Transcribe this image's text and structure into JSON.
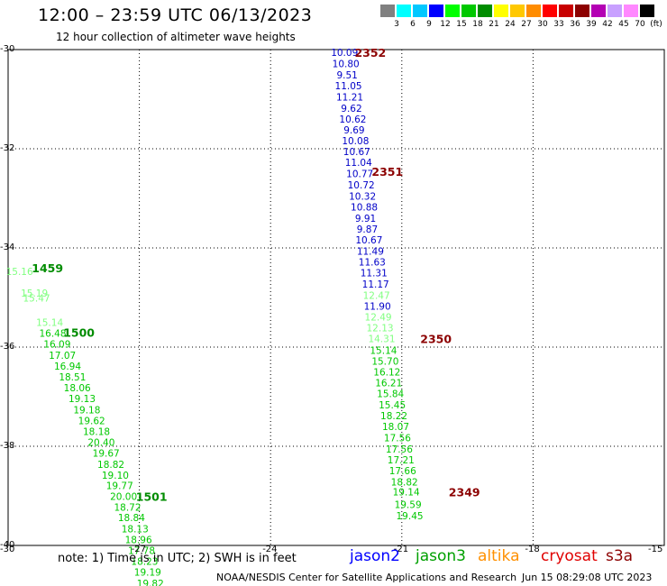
{
  "header": {
    "title": "12:00 – 23:59 UTC 06/13/2023",
    "subtitle": "12 hour collection of altimeter wave heights"
  },
  "legend": {
    "colors": [
      "#808080",
      "#00ffff",
      "#00c8ff",
      "#0000ff",
      "#00ff00",
      "#00c800",
      "#008c00",
      "#ffff00",
      "#ffc800",
      "#ff8c00",
      "#ff0000",
      "#c80000",
      "#8c0000",
      "#b400b4",
      "#c8a0ff",
      "#ff88ff",
      "#000000"
    ],
    "labels": [
      "3",
      "6",
      "9",
      "12",
      "15",
      "18",
      "21",
      "24",
      "27",
      "30",
      "33",
      "36",
      "39",
      "42",
      "45",
      "70",
      "(ft)"
    ]
  },
  "axes": {
    "lat_labels": [
      "-30",
      "-32",
      "-34",
      "-36",
      "-38",
      "-40"
    ],
    "lon_labels": [
      "-30",
      "-27",
      "-24",
      "-21",
      "-18",
      "-15"
    ]
  },
  "tracks": [
    {
      "name": "jason2",
      "color": "#0000c8",
      "points": [
        {
          "lon": -22.31,
          "lat": -30.05,
          "v": "10.09"
        },
        {
          "lon": -22.28,
          "lat": -30.28,
          "v": "10.80"
        },
        {
          "lon": -22.25,
          "lat": -30.51,
          "v": "9.51"
        },
        {
          "lon": -22.22,
          "lat": -30.73,
          "v": "11.05"
        },
        {
          "lon": -22.19,
          "lat": -30.95,
          "v": "11.21"
        },
        {
          "lon": -22.15,
          "lat": -31.18,
          "v": "9.62"
        },
        {
          "lon": -22.12,
          "lat": -31.4,
          "v": "10.62"
        },
        {
          "lon": -22.09,
          "lat": -31.62,
          "v": "9.69"
        },
        {
          "lon": -22.06,
          "lat": -31.84,
          "v": "10.08"
        },
        {
          "lon": -22.03,
          "lat": -32.05,
          "v": "10.67"
        },
        {
          "lon": -21.99,
          "lat": -32.27,
          "v": "11.04"
        },
        {
          "lon": -21.96,
          "lat": -32.5,
          "v": "10.77"
        },
        {
          "lon": -21.93,
          "lat": -32.73,
          "v": "10.72"
        },
        {
          "lon": -21.9,
          "lat": -32.95,
          "v": "10.32"
        },
        {
          "lon": -21.86,
          "lat": -33.17,
          "v": "10.88"
        },
        {
          "lon": -21.83,
          "lat": -33.4,
          "v": "9.91"
        },
        {
          "lon": -21.79,
          "lat": -33.62,
          "v": "9.87"
        },
        {
          "lon": -21.75,
          "lat": -33.84,
          "v": "10.67"
        },
        {
          "lon": -21.72,
          "lat": -34.06,
          "v": "11.49"
        },
        {
          "lon": -21.68,
          "lat": -34.28,
          "v": "11.63"
        },
        {
          "lon": -21.64,
          "lat": -34.5,
          "v": "11.31"
        },
        {
          "lon": -21.6,
          "lat": -34.73,
          "v": "11.17"
        },
        {
          "lon": -21.56,
          "lat": -35.17,
          "v": "11.90"
        }
      ]
    },
    {
      "name": "jason3",
      "color": "#00c800",
      "points": [
        {
          "lon": -21.58,
          "lat": -34.95,
          "v": "12.47",
          "c": "#80ff80"
        },
        {
          "lon": -21.54,
          "lat": -35.39,
          "v": "12.49",
          "c": "#80ff80"
        },
        {
          "lon": -21.5,
          "lat": -35.61,
          "v": "12.13",
          "c": "#80ff80"
        },
        {
          "lon": -21.46,
          "lat": -35.83,
          "v": "14.31",
          "c": "#80ff80"
        },
        {
          "lon": -21.42,
          "lat": -36.06,
          "v": "15.14"
        },
        {
          "lon": -21.38,
          "lat": -36.28,
          "v": "15.70"
        },
        {
          "lon": -21.34,
          "lat": -36.5,
          "v": "16.12"
        },
        {
          "lon": -21.3,
          "lat": -36.72,
          "v": "16.21"
        },
        {
          "lon": -21.26,
          "lat": -36.94,
          "v": "15.84"
        },
        {
          "lon": -21.22,
          "lat": -37.16,
          "v": "15.45"
        },
        {
          "lon": -21.18,
          "lat": -37.38,
          "v": "18.22"
        },
        {
          "lon": -21.14,
          "lat": -37.6,
          "v": "18.07"
        },
        {
          "lon": -21.1,
          "lat": -37.83,
          "v": "17.56"
        },
        {
          "lon": -21.06,
          "lat": -38.05,
          "v": "17.56"
        },
        {
          "lon": -21.02,
          "lat": -38.27,
          "v": "17.21"
        },
        {
          "lon": -20.98,
          "lat": -38.49,
          "v": "17.66"
        },
        {
          "lon": -20.94,
          "lat": -38.72,
          "v": "18.82"
        },
        {
          "lon": -20.9,
          "lat": -38.92,
          "v": "19.14"
        },
        {
          "lon": -20.86,
          "lat": -39.17,
          "v": "19.59"
        },
        {
          "lon": -20.82,
          "lat": -39.4,
          "v": "19.45"
        },
        {
          "lon": -29.74,
          "lat": -34.47,
          "v": "15.16",
          "c": "#80ff80"
        },
        {
          "lon": -29.4,
          "lat": -34.91,
          "v": "15.19",
          "c": "#80ff80"
        },
        {
          "lon": -29.35,
          "lat": -35.01,
          "v": "15.47",
          "c": "#80ff80"
        },
        {
          "lon": -29.05,
          "lat": -35.5,
          "v": "15.14",
          "c": "#80ff80"
        },
        {
          "lon": -28.98,
          "lat": -35.72,
          "v": "16.48"
        },
        {
          "lon": -28.88,
          "lat": -35.94,
          "v": "16.09"
        },
        {
          "lon": -28.76,
          "lat": -36.16,
          "v": "17.07"
        },
        {
          "lon": -28.64,
          "lat": -36.38,
          "v": "16.94"
        },
        {
          "lon": -28.53,
          "lat": -36.6,
          "v": "18.51"
        },
        {
          "lon": -28.42,
          "lat": -36.82,
          "v": "18.06"
        },
        {
          "lon": -28.31,
          "lat": -37.04,
          "v": "19.13"
        },
        {
          "lon": -28.2,
          "lat": -37.26,
          "v": "19.18"
        },
        {
          "lon": -28.09,
          "lat": -37.48,
          "v": "19.62"
        },
        {
          "lon": -27.98,
          "lat": -37.7,
          "v": "18.18"
        },
        {
          "lon": -27.87,
          "lat": -37.92,
          "v": "20.40"
        },
        {
          "lon": -27.76,
          "lat": -38.14,
          "v": "19.67"
        },
        {
          "lon": -27.65,
          "lat": -38.36,
          "v": "18.82"
        },
        {
          "lon": -27.55,
          "lat": -38.58,
          "v": "19.10"
        },
        {
          "lon": -27.45,
          "lat": -38.79,
          "v": "19.77"
        },
        {
          "lon": -27.36,
          "lat": -39.01,
          "v": "20.00"
        },
        {
          "lon": -27.27,
          "lat": -39.23,
          "v": "18.72"
        },
        {
          "lon": -27.18,
          "lat": -39.44,
          "v": "18.84"
        },
        {
          "lon": -27.1,
          "lat": -39.66,
          "v": "18.13"
        },
        {
          "lon": -27.02,
          "lat": -39.88,
          "v": "18.96"
        },
        {
          "lon": -26.95,
          "lat": -40.1,
          "v": "17.78"
        },
        {
          "lon": -26.88,
          "lat": -40.32,
          "v": "18.23"
        },
        {
          "lon": -26.81,
          "lat": -40.54,
          "v": "19.19"
        },
        {
          "lon": -26.75,
          "lat": -40.76,
          "v": "19.82"
        }
      ]
    }
  ],
  "time_labels": [
    {
      "lon": -21.72,
      "lat": -30.05,
      "t": "2352",
      "c": "#8c0000"
    },
    {
      "lon": -21.33,
      "lat": -32.45,
      "t": "2351",
      "c": "#8c0000"
    },
    {
      "lon": -20.22,
      "lat": -35.83,
      "t": "2350",
      "c": "#8c0000"
    },
    {
      "lon": -19.57,
      "lat": -38.92,
      "t": "2349",
      "c": "#8c0000"
    },
    {
      "lon": -29.1,
      "lat": -34.4,
      "t": "1459",
      "c": "#008c00"
    },
    {
      "lon": -28.38,
      "lat": -35.7,
      "t": "1500",
      "c": "#008c00"
    },
    {
      "lon": -26.72,
      "lat": -39.01,
      "t": "1501",
      "c": "#008c00"
    }
  ],
  "footer": {
    "note": "note: 1) Time is in UTC; 2) SWH is in feet",
    "credit": "NOAA/NESDIS Center for Satellite Applications and Research",
    "stamp": "Jun 15 08:29:08 UTC 2023",
    "satellites": [
      {
        "name": "jason2",
        "color": "#0000ff"
      },
      {
        "name": "jason3",
        "color": "#00a000"
      },
      {
        "name": "altika",
        "color": "#ff9000"
      },
      {
        "name": "cryosat",
        "color": "#e00000"
      },
      {
        "name": "s3a",
        "color": "#8c0000"
      }
    ]
  }
}
